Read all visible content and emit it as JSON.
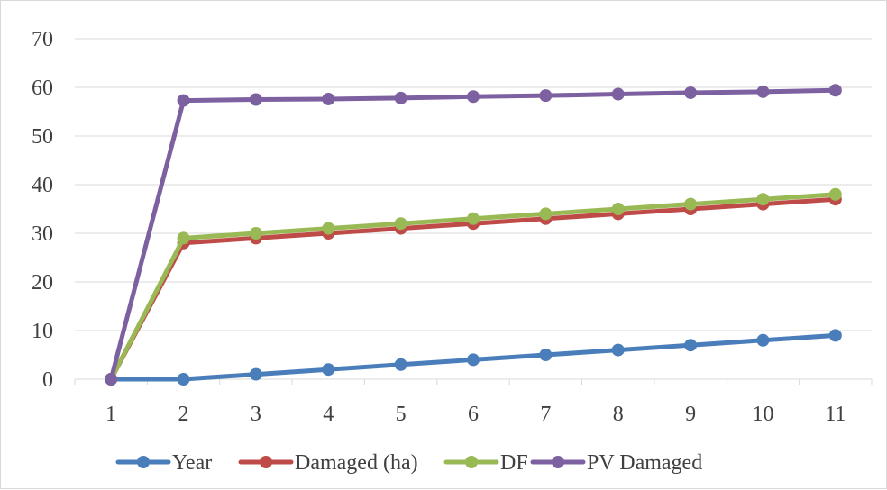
{
  "chart_data": {
    "type": "line",
    "title": "",
    "xlabel": "",
    "ylabel": "",
    "categories": [
      "1",
      "2",
      "3",
      "4",
      "5",
      "6",
      "7",
      "8",
      "9",
      "10",
      "11"
    ],
    "ylim": [
      0,
      70
    ],
    "yticks": [
      "0",
      "10",
      "20",
      "30",
      "40",
      "50",
      "60",
      "70"
    ],
    "grid": "horizontal",
    "legend_position": "bottom",
    "series": [
      {
        "name": "Year",
        "color": "#4a7ebb",
        "values": [
          0,
          0,
          1,
          2,
          3,
          4,
          5,
          6,
          7,
          8,
          9
        ]
      },
      {
        "name": "Damaged (ha)",
        "color": "#be4b48",
        "values": [
          0,
          28,
          29,
          30,
          31,
          32,
          33,
          34,
          35,
          36,
          37
        ]
      },
      {
        "name": "DF",
        "color": "#98b954",
        "values": [
          0,
          29,
          30,
          31,
          32,
          33,
          34,
          35,
          36,
          37,
          38
        ]
      },
      {
        "name": "PV Damaged",
        "color": "#7d60a0",
        "values": [
          0,
          57.3,
          57.5,
          57.6,
          57.8,
          58.1,
          58.3,
          58.6,
          58.9,
          59.1,
          59.4
        ]
      }
    ]
  }
}
